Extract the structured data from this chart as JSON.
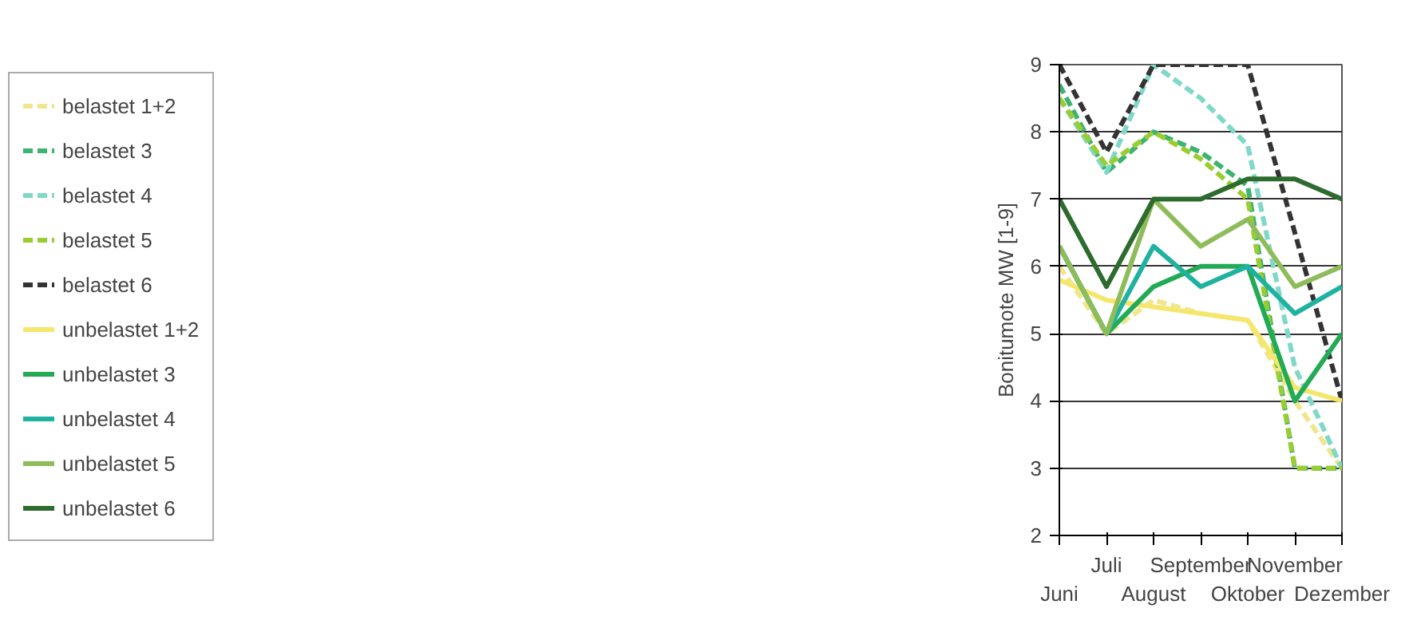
{
  "chart_data": {
    "type": "line",
    "ylabel": "Bonitumote MW [1-9]",
    "categories": [
      "Juni",
      "Juli",
      "August",
      "September",
      "Oktober",
      "November",
      "Dezember"
    ],
    "ylim": [
      2,
      9
    ],
    "yticks": [
      2,
      3,
      4,
      5,
      6,
      7,
      8,
      9
    ],
    "grid": "y",
    "legend": "left",
    "marker": "none",
    "series": [
      {
        "name": "belastet 1+2",
        "color": "#f0e68c",
        "line_style": "dashed",
        "values": [
          6,
          5,
          5.5,
          5.3,
          5.2,
          4,
          3
        ]
      },
      {
        "name": "belastet 3",
        "color": "#3cb371",
        "line_style": "dashed",
        "values": [
          8.7,
          7.4,
          8,
          7.7,
          7.2,
          3,
          3
        ]
      },
      {
        "name": "belastet 4",
        "color": "#7fd8c8",
        "line_style": "dashed",
        "values": [
          8.5,
          7.4,
          9,
          8.5,
          7.8,
          4.5,
          3
        ]
      },
      {
        "name": "belastet 5",
        "color": "#9acd32",
        "line_style": "dashed",
        "values": [
          8.5,
          7.5,
          8,
          7.6,
          7,
          3,
          3
        ]
      },
      {
        "name": "belastet 6",
        "color": "#333333",
        "line_style": "dashed",
        "values": [
          9,
          7.7,
          9,
          9,
          9,
          6.5,
          4
        ]
      },
      {
        "name": "unbelastet 1+2",
        "color": "#f5e66e",
        "line_style": "solid",
        "values": [
          5.8,
          5.5,
          5.4,
          5.3,
          5.2,
          4.2,
          4
        ]
      },
      {
        "name": "unbelastet 3",
        "color": "#22aa55",
        "line_style": "solid",
        "values": [
          6.3,
          5,
          5.7,
          6,
          6,
          4,
          5
        ]
      },
      {
        "name": "unbelastet 4",
        "color": "#20b2a0",
        "line_style": "solid",
        "values": [
          6.3,
          5,
          6.3,
          5.7,
          6,
          5.3,
          5.7
        ]
      },
      {
        "name": "unbelastet 5",
        "color": "#8fbc5a",
        "line_style": "solid",
        "values": [
          6.3,
          5,
          7,
          6.3,
          6.7,
          5.7,
          6
        ]
      },
      {
        "name": "unbelastet 6",
        "color": "#2e6b2e",
        "line_style": "solid",
        "values": [
          7,
          5.7,
          7,
          7,
          7.3,
          7.3,
          7
        ]
      }
    ]
  }
}
